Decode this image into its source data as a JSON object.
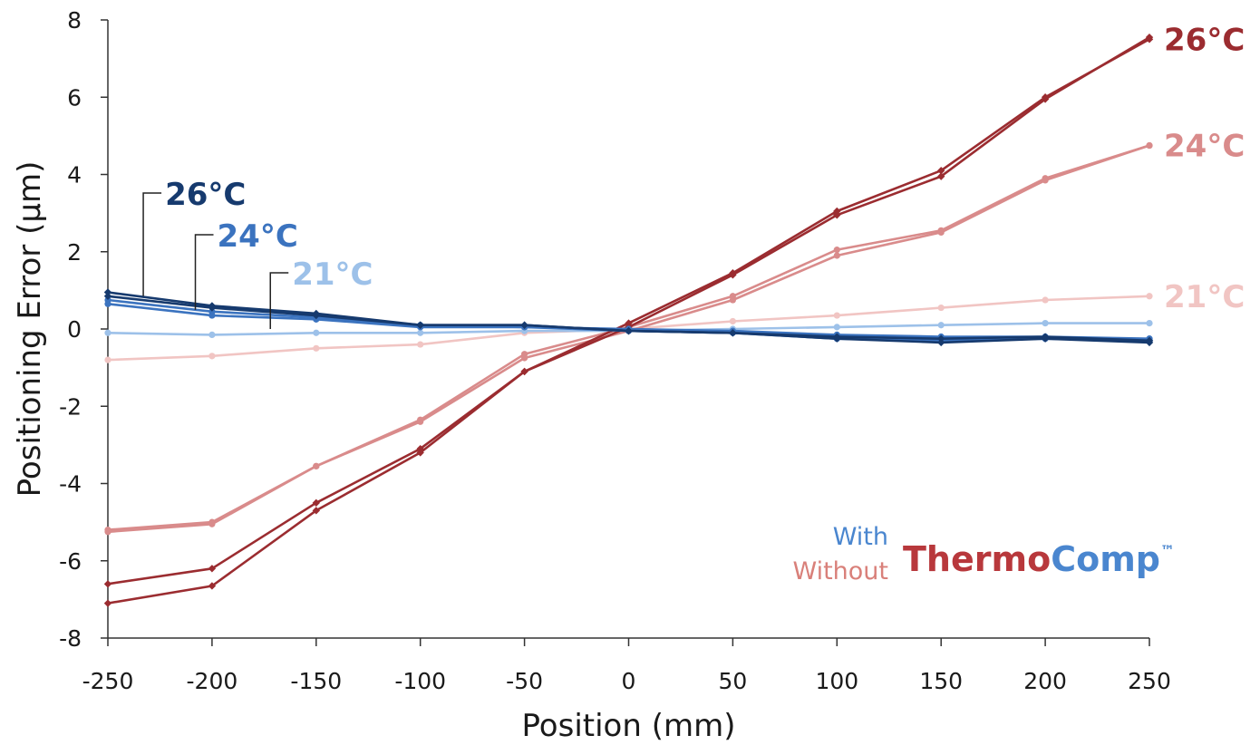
{
  "colors": {
    "with_26": "#163a6e",
    "with_24": "#3b73bf",
    "with_21": "#9dc1e9",
    "without_26": "#9b2c30",
    "without_24": "#d98b8b",
    "without_21": "#f1c5c3",
    "brand_red": "#b8383c",
    "brand_blue": "#4a86cf",
    "with_text": "#4a86cf",
    "without_text": "#d9807a",
    "axis": "#333333",
    "callout_line": "#222222"
  },
  "chart_data": {
    "type": "line",
    "title": "",
    "xlabel": "Position (mm)",
    "ylabel": "Positioning Error (µm)",
    "xlim": [
      -250,
      250
    ],
    "ylim": [
      -8,
      8
    ],
    "x_ticks": [
      "-250",
      "-200",
      "-150",
      "-100",
      "-50",
      "0",
      "50",
      "100",
      "150",
      "200",
      "250"
    ],
    "y_ticks": [
      "8",
      "6",
      "4",
      "2",
      "0",
      "-2",
      "-4",
      "-6",
      "-8"
    ],
    "x": [
      -250,
      -200,
      -150,
      -100,
      -50,
      0,
      50,
      100,
      150,
      200,
      250
    ],
    "grid": false,
    "series": [
      {
        "group": "without",
        "temp": "21°C",
        "color": "without_21",
        "marker": "circle",
        "values": [
          -0.8,
          -0.7,
          -0.5,
          -0.4,
          -0.1,
          0.0,
          0.2,
          0.35,
          0.55,
          0.75,
          0.85
        ]
      },
      {
        "group": "with",
        "temp": "21°C",
        "color": "with_21",
        "marker": "circle",
        "values": [
          -0.1,
          -0.15,
          -0.1,
          -0.1,
          -0.05,
          -0.05,
          0.0,
          0.05,
          0.1,
          0.15,
          0.15
        ]
      },
      {
        "group": "without",
        "temp": "24°C",
        "color": "without_24",
        "marker": "circle",
        "values": [
          -5.2,
          -5.0,
          -3.55,
          -2.35,
          -0.65,
          0.05,
          0.85,
          2.05,
          2.55,
          3.9,
          4.75
        ]
      },
      {
        "group": "without",
        "temp": "24°C",
        "color": "without_24",
        "marker": "circle",
        "values": [
          -5.25,
          -5.05,
          -3.55,
          -2.4,
          -0.75,
          -0.05,
          0.75,
          1.9,
          2.5,
          3.85,
          4.75
        ]
      },
      {
        "group": "without",
        "temp": "26°C",
        "color": "without_26",
        "marker": "diamond",
        "values": [
          -6.6,
          -6.2,
          -4.5,
          -3.1,
          -1.1,
          0.15,
          1.45,
          3.05,
          4.1,
          6.0,
          7.5
        ]
      },
      {
        "group": "without",
        "temp": "26°C",
        "color": "without_26",
        "marker": "diamond",
        "values": [
          -7.1,
          -6.65,
          -4.7,
          -3.2,
          -1.1,
          0.05,
          1.4,
          2.95,
          3.95,
          5.95,
          7.55
        ]
      },
      {
        "group": "with",
        "temp": "24°C",
        "color": "with_24",
        "marker": "circle",
        "values": [
          0.65,
          0.35,
          0.25,
          0.05,
          0.05,
          0.0,
          -0.05,
          -0.15,
          -0.2,
          -0.2,
          -0.25
        ]
      },
      {
        "group": "with",
        "temp": "24°C",
        "color": "with_24",
        "marker": "circle",
        "values": [
          0.75,
          0.45,
          0.3,
          0.1,
          0.05,
          -0.05,
          -0.1,
          -0.25,
          -0.3,
          -0.25,
          -0.3
        ]
      },
      {
        "group": "with",
        "temp": "26°C",
        "color": "with_26",
        "marker": "diamond",
        "values": [
          0.85,
          0.55,
          0.35,
          0.1,
          0.1,
          -0.05,
          -0.1,
          -0.2,
          -0.25,
          -0.2,
          -0.3
        ]
      },
      {
        "group": "with",
        "temp": "26°C",
        "color": "with_26",
        "marker": "diamond",
        "values": [
          0.95,
          0.6,
          0.4,
          0.1,
          0.1,
          -0.05,
          -0.1,
          -0.25,
          -0.35,
          -0.25,
          -0.35
        ]
      }
    ],
    "end_labels": [
      {
        "text": "26°C",
        "color": "without_26",
        "at_y": 7.5
      },
      {
        "text": "24°C",
        "color": "without_24",
        "at_y": 4.75
      },
      {
        "text": "21°C",
        "color": "without_21",
        "at_y": 0.85
      }
    ],
    "callouts": [
      {
        "text": "26°C",
        "color": "with_26",
        "target_x": -233,
        "target_y": 0.85
      },
      {
        "text": "24°C",
        "color": "with_24",
        "target_x": -208,
        "target_y": 0.5
      },
      {
        "text": "21°C",
        "color": "with_21",
        "target_x": -172,
        "target_y": 0.0
      }
    ],
    "legend": {
      "with_label": "With",
      "without_label": "Without",
      "brand_part1": "Thermo",
      "brand_part2": "Comp",
      "trademark": "™",
      "placement": "bottom-right"
    }
  }
}
